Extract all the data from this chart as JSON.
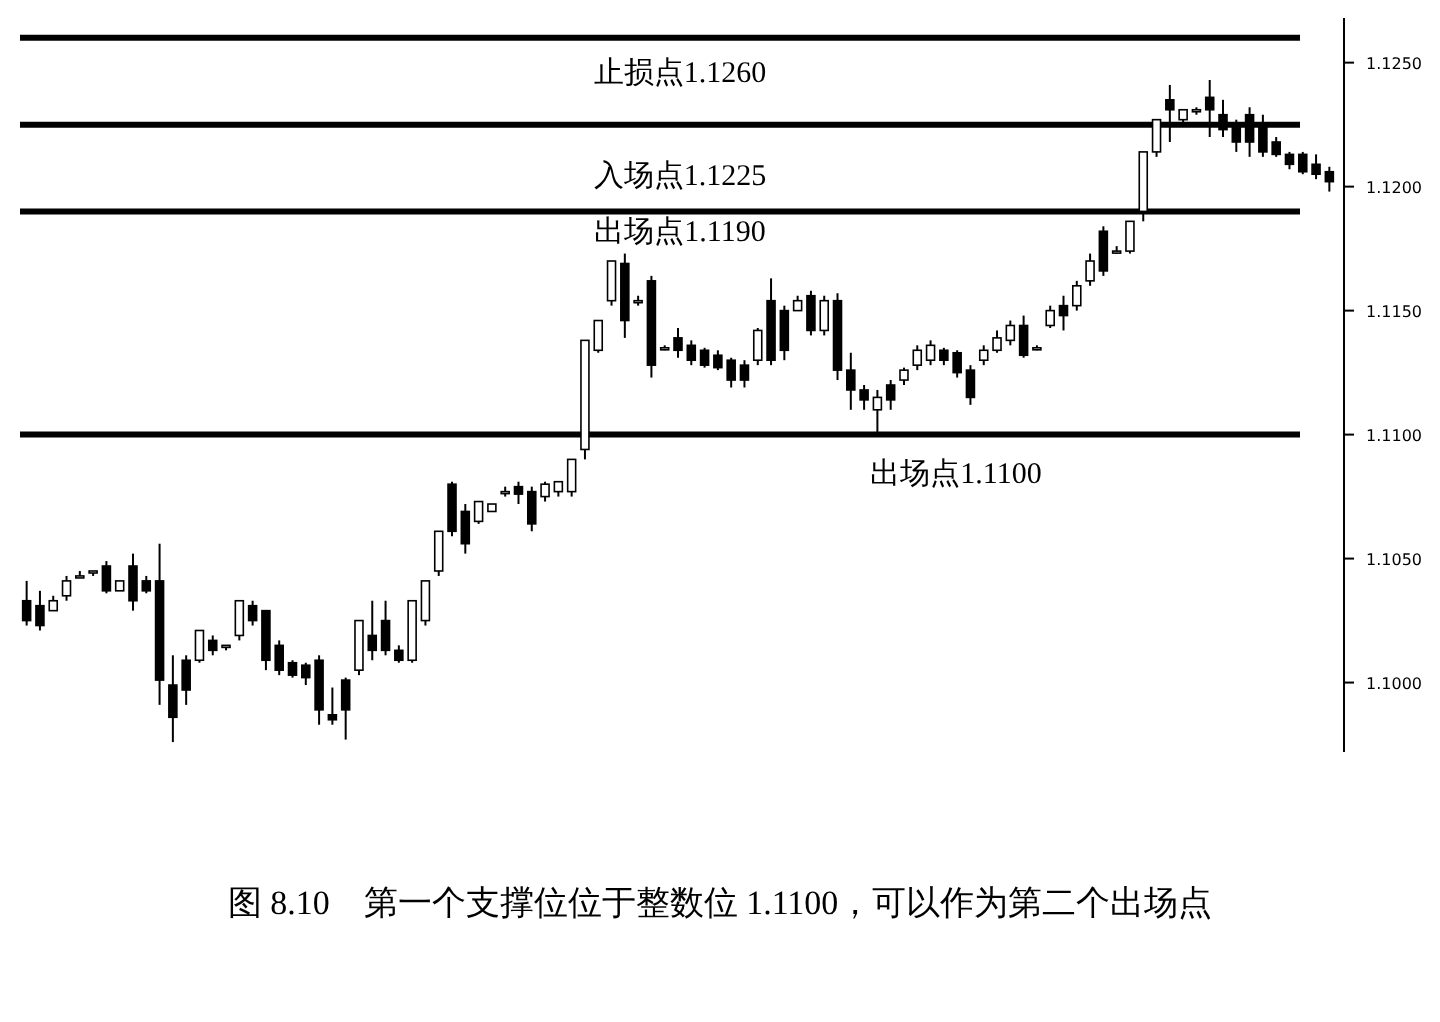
{
  "chart_data": {
    "type": "candlestick",
    "title": "图 8.10　第一个支撑位位于整数位 1.1100，可以作为第二个出场点",
    "color": "#000000",
    "categories": [
      null,
      null,
      null,
      null,
      null,
      null,
      null,
      null,
      null,
      null,
      null,
      null,
      null,
      null,
      null,
      null,
      null,
      null,
      null,
      null,
      null,
      null,
      null,
      null,
      null,
      null,
      null,
      null,
      null,
      null,
      null,
      null,
      null,
      null,
      null,
      null,
      null,
      null,
      null,
      null,
      null,
      null,
      null,
      null,
      null,
      null,
      null,
      null,
      null,
      null,
      null,
      null,
      null,
      null,
      null,
      null,
      null,
      null,
      null,
      null,
      null,
      null,
      null,
      null,
      null,
      null,
      null,
      null,
      null,
      null,
      null,
      null,
      null,
      null,
      null,
      null,
      null,
      null,
      null,
      null,
      null,
      null,
      null,
      null,
      null,
      null,
      null,
      null,
      null,
      null,
      null,
      null,
      null,
      null,
      null,
      null,
      null,
      null,
      null
    ],
    "ohlc": [
      [
        1.1033,
        1.1041,
        1.1023,
        1.1025
      ],
      [
        1.1031,
        1.1037,
        1.1021,
        1.1023
      ],
      [
        1.1029,
        1.1035,
        1.1029,
        1.1033
      ],
      [
        1.1035,
        1.1043,
        1.1033,
        1.1041
      ],
      [
        1.1043,
        1.1045,
        1.1043,
        1.1043
      ],
      [
        1.1045,
        1.1045,
        1.1043,
        1.1045
      ],
      [
        1.1047,
        1.1049,
        1.1036,
        1.1037
      ],
      [
        1.1037,
        1.1041,
        1.1037,
        1.1041
      ],
      [
        1.1047,
        1.1052,
        1.1029,
        1.1033
      ],
      [
        1.1041,
        1.1043,
        1.1036,
        1.1037
      ],
      [
        1.1041,
        1.1056,
        1.0991,
        1.1001
      ],
      [
        1.0999,
        1.1011,
        1.0976,
        1.0986
      ],
      [
        1.1009,
        1.1011,
        1.0991,
        1.0997
      ],
      [
        1.1009,
        1.1021,
        1.1008,
        1.1021
      ],
      [
        1.1017,
        1.1019,
        1.1011,
        1.1013
      ],
      [
        1.1015,
        1.1015,
        1.1013,
        1.1015
      ],
      [
        1.1019,
        1.1033,
        1.1017,
        1.1033
      ],
      [
        1.1031,
        1.1033,
        1.1023,
        1.1025
      ],
      [
        1.1029,
        1.1029,
        1.1005,
        1.1009
      ],
      [
        1.1015,
        1.1017,
        1.1003,
        1.1005
      ],
      [
        1.1008,
        1.1009,
        1.1002,
        1.1003
      ],
      [
        1.1007,
        1.1008,
        1.0999,
        1.1002
      ],
      [
        1.1009,
        1.1011,
        1.0983,
        1.0989
      ],
      [
        1.0987,
        1.0998,
        1.0983,
        1.0985
      ],
      [
        1.1001,
        1.1002,
        1.0977,
        1.0989
      ],
      [
        1.1005,
        1.1025,
        1.1003,
        1.1025
      ],
      [
        1.1019,
        1.1033,
        1.1009,
        1.1013
      ],
      [
        1.1025,
        1.1033,
        1.1011,
        1.1013
      ],
      [
        1.1013,
        1.1015,
        1.1008,
        1.1009
      ],
      [
        1.1009,
        1.1033,
        1.1008,
        1.1033
      ],
      [
        1.1025,
        1.1041,
        1.1023,
        1.1041
      ],
      [
        1.1045,
        1.1061,
        1.1043,
        1.1061
      ],
      [
        1.108,
        1.1081,
        1.1059,
        1.1061
      ],
      [
        1.1069,
        1.1072,
        1.1052,
        1.1056
      ],
      [
        1.1065,
        1.1073,
        1.1064,
        1.1073
      ],
      [
        1.1069,
        1.1072,
        1.1069,
        1.1072
      ],
      [
        1.1077,
        1.1079,
        1.1075,
        1.1077
      ],
      [
        1.1079,
        1.1081,
        1.1072,
        1.1076
      ],
      [
        1.1077,
        1.1079,
        1.1061,
        1.1064
      ],
      [
        1.1075,
        1.1081,
        1.1073,
        1.108
      ],
      [
        1.1077,
        1.1081,
        1.1075,
        1.1081
      ],
      [
        1.1077,
        1.109,
        1.1075,
        1.109
      ],
      [
        1.1094,
        1.1138,
        1.109,
        1.1138
      ],
      [
        1.1134,
        1.1146,
        1.1133,
        1.1146
      ],
      [
        1.1154,
        1.117,
        1.1152,
        1.117
      ],
      [
        1.1169,
        1.1173,
        1.1139,
        1.1146
      ],
      [
        1.1154,
        1.1156,
        1.1152,
        1.1154
      ],
      [
        1.1162,
        1.1164,
        1.1123,
        1.1128
      ],
      [
        1.1135,
        1.1136,
        1.1134,
        1.1135
      ],
      [
        1.1139,
        1.1143,
        1.1131,
        1.1134
      ],
      [
        1.1136,
        1.1138,
        1.1128,
        1.113
      ],
      [
        1.1134,
        1.1135,
        1.1127,
        1.1128
      ],
      [
        1.1132,
        1.1134,
        1.1126,
        1.1127
      ],
      [
        1.113,
        1.1131,
        1.1119,
        1.1122
      ],
      [
        1.1128,
        1.113,
        1.1119,
        1.1122
      ],
      [
        1.113,
        1.1143,
        1.1128,
        1.1142
      ],
      [
        1.1154,
        1.1163,
        1.1128,
        1.113
      ],
      [
        1.115,
        1.1152,
        1.113,
        1.1134
      ],
      [
        1.115,
        1.1156,
        1.115,
        1.1154
      ],
      [
        1.1156,
        1.1158,
        1.114,
        1.1142
      ],
      [
        1.1142,
        1.1156,
        1.114,
        1.1154
      ],
      [
        1.1154,
        1.1157,
        1.1122,
        1.1126
      ],
      [
        1.1126,
        1.1133,
        1.111,
        1.1118
      ],
      [
        1.1118,
        1.112,
        1.111,
        1.1114
      ],
      [
        1.111,
        1.1118,
        1.11,
        1.1115
      ],
      [
        1.112,
        1.1122,
        1.111,
        1.1114
      ],
      [
        1.1122,
        1.1127,
        1.112,
        1.1126
      ],
      [
        1.1128,
        1.1136,
        1.1126,
        1.1134
      ],
      [
        1.113,
        1.1138,
        1.1128,
        1.1136
      ],
      [
        1.1134,
        1.1135,
        1.1128,
        1.113
      ],
      [
        1.1133,
        1.1134,
        1.1123,
        1.1125
      ],
      [
        1.1126,
        1.1128,
        1.1112,
        1.1115
      ],
      [
        1.113,
        1.1136,
        1.1128,
        1.1134
      ],
      [
        1.1134,
        1.1142,
        1.1133,
        1.1139
      ],
      [
        1.1138,
        1.1146,
        1.1136,
        1.1144
      ],
      [
        1.1144,
        1.1148,
        1.1131,
        1.1132
      ],
      [
        1.1135,
        1.1136,
        1.1134,
        1.1135
      ],
      [
        1.1144,
        1.1152,
        1.1143,
        1.115
      ],
      [
        1.1152,
        1.1156,
        1.1142,
        1.1148
      ],
      [
        1.1152,
        1.1162,
        1.115,
        1.116
      ],
      [
        1.1162,
        1.1173,
        1.116,
        1.117
      ],
      [
        1.1182,
        1.1184,
        1.1164,
        1.1166
      ],
      [
        1.1174,
        1.1176,
        1.1173,
        1.1174
      ],
      [
        1.1174,
        1.1186,
        1.1173,
        1.1186
      ],
      [
        1.119,
        1.1214,
        1.1186,
        1.1214
      ],
      [
        1.1214,
        1.1227,
        1.1212,
        1.1227
      ],
      [
        1.1235,
        1.1241,
        1.1218,
        1.1231
      ],
      [
        1.1227,
        1.1231,
        1.1225,
        1.1231
      ],
      [
        1.1231,
        1.1232,
        1.1229,
        1.1231
      ],
      [
        1.1236,
        1.1243,
        1.122,
        1.1231
      ],
      [
        1.1229,
        1.1235,
        1.122,
        1.1223
      ],
      [
        1.1225,
        1.1227,
        1.1214,
        1.1218
      ],
      [
        1.1229,
        1.1232,
        1.1212,
        1.1218
      ],
      [
        1.1225,
        1.1229,
        1.1212,
        1.1214
      ],
      [
        1.1218,
        1.122,
        1.1212,
        1.1213
      ],
      [
        1.1213,
        1.1214,
        1.1207,
        1.1209
      ],
      [
        1.1213,
        1.1214,
        1.1205,
        1.1206
      ],
      [
        1.1209,
        1.1213,
        1.1203,
        1.1205
      ],
      [
        1.1206,
        1.1208,
        1.1198,
        1.1202
      ]
    ],
    "ylim": [
      1.0972,
      1.1268
    ],
    "yticks": [
      {
        "value": 1.1,
        "label": "1.1000"
      },
      {
        "value": 1.105,
        "label": "1.1050"
      },
      {
        "value": 1.11,
        "label": "1.1100"
      },
      {
        "value": 1.115,
        "label": "1.1150"
      },
      {
        "value": 1.12,
        "label": "1.1200"
      },
      {
        "value": 1.125,
        "label": "1.1250"
      }
    ],
    "ref_lines": [
      {
        "axis": "y",
        "value": 1.126,
        "label": "止损点1.1260",
        "color": "#000000"
      },
      {
        "axis": "y",
        "value": 1.1225,
        "label": "入场点1.1225",
        "color": "#000000"
      },
      {
        "axis": "y",
        "value": 1.119,
        "label": "出场点1.1190",
        "color": "#000000"
      },
      {
        "axis": "y",
        "value": 1.11,
        "label": "出场点1.1100",
        "color": "#000000"
      }
    ],
    "grid": false
  }
}
